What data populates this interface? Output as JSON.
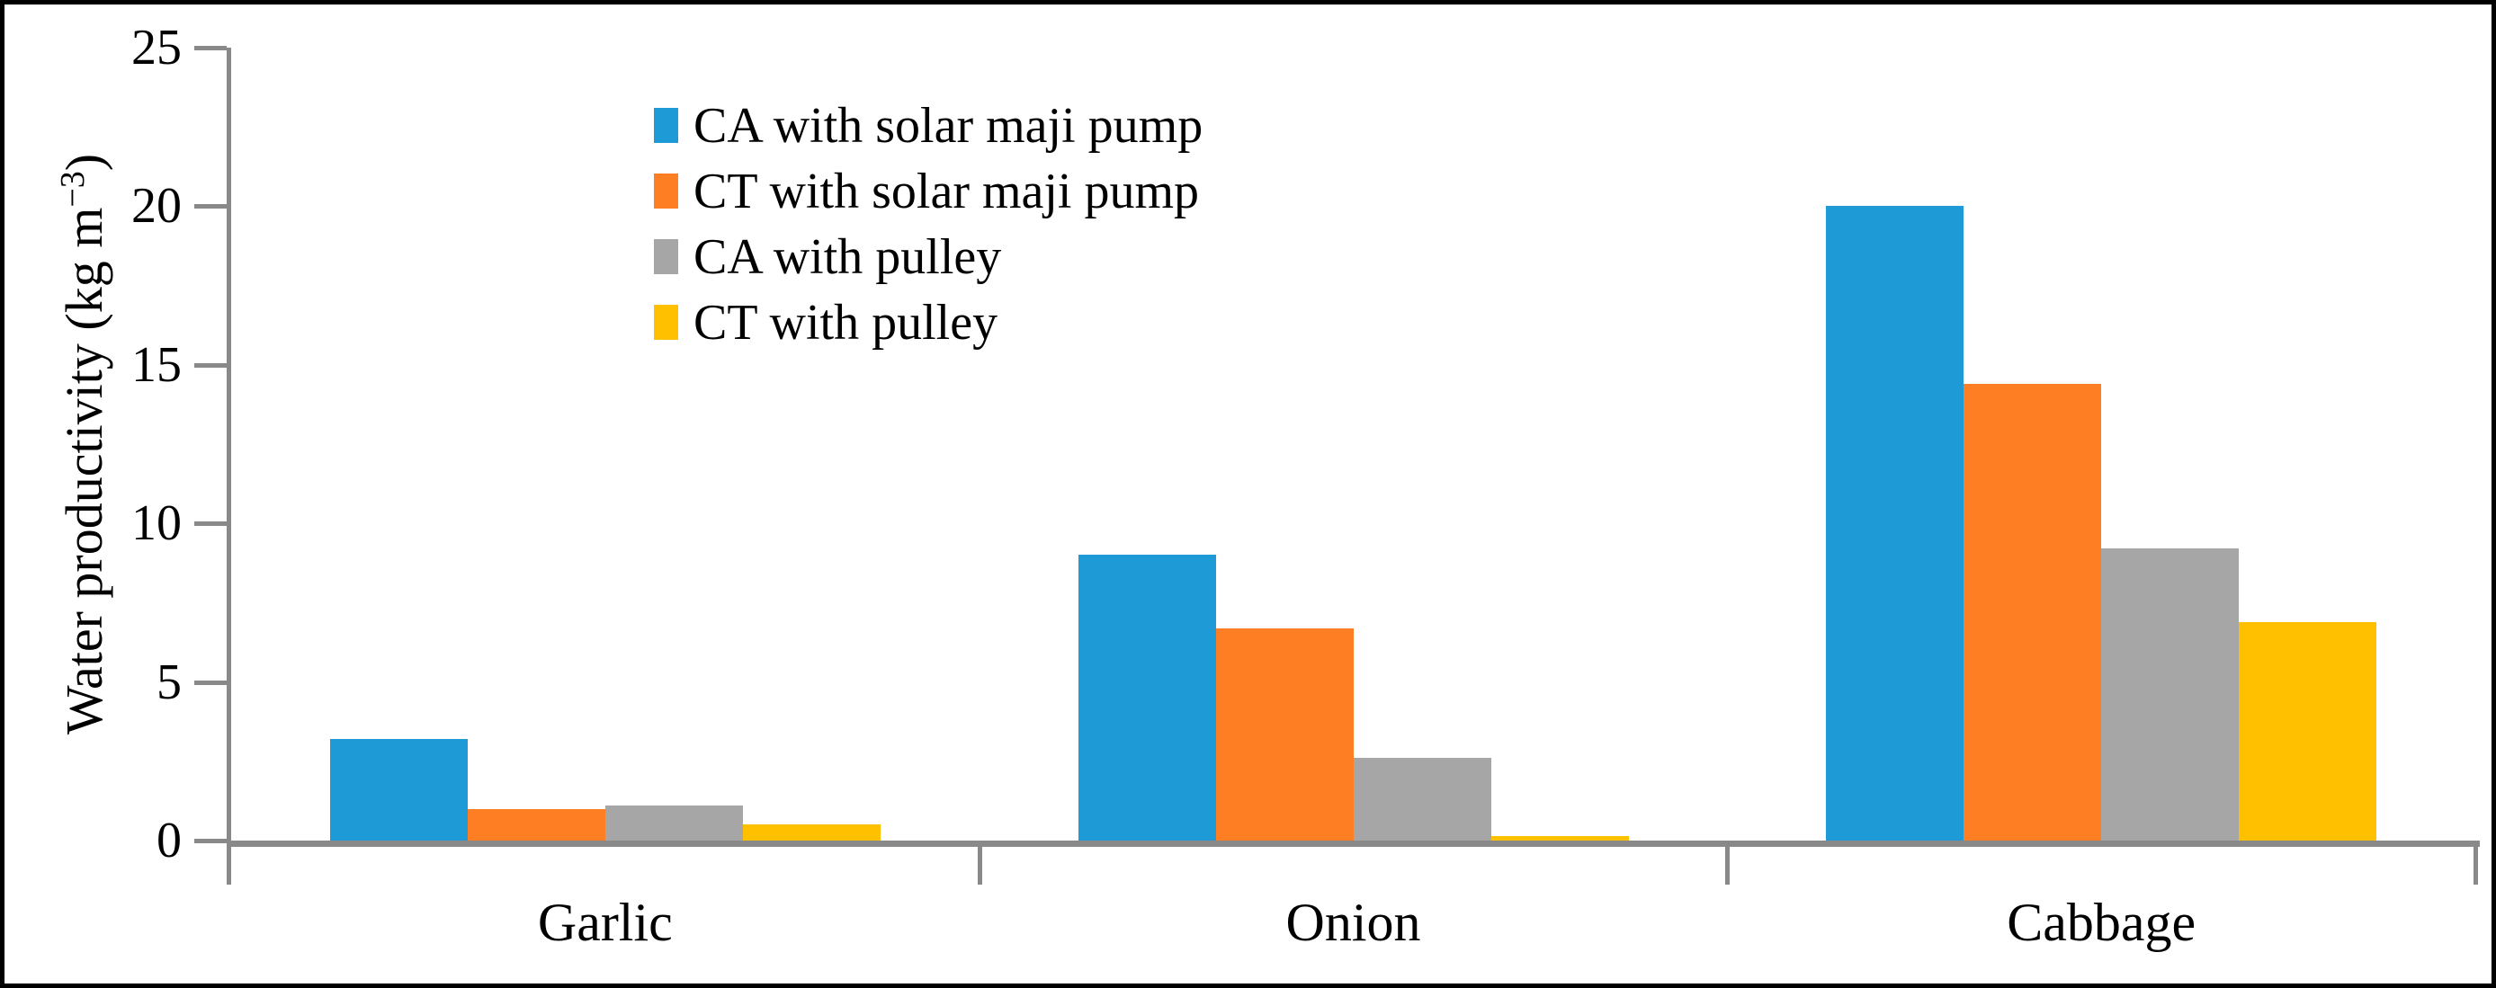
{
  "chart_data": {
    "type": "bar",
    "title": "",
    "xlabel": "",
    "ylabel": "Water productivity (kg m−3)",
    "ylabel_main": "Water productivity (kg m",
    "ylabel_sup": "−3",
    "ylabel_close": ")",
    "categories": [
      "Garlic",
      "Onion",
      "Cabbage"
    ],
    "series": [
      {
        "name": "CA with solar maji pump",
        "color": "#1E9BD7",
        "values": [
          3.2,
          9.0,
          20.0
        ]
      },
      {
        "name": "CT with solar maji pump",
        "color": "#FD7E23",
        "values": [
          1.0,
          6.7,
          14.4
        ]
      },
      {
        "name": "CA with pulley",
        "color": "#A6A6A6",
        "values": [
          1.1,
          2.6,
          9.2
        ]
      },
      {
        "name": "CT with pulley",
        "color": "#FFC000",
        "values": [
          0.5,
          0.15,
          6.9
        ]
      }
    ],
    "ylim": [
      0,
      25
    ],
    "yticks": [
      0,
      5,
      10,
      15,
      20,
      25
    ],
    "legend_position": "top-center",
    "grid": false,
    "axis_color": "#898989",
    "text_color": "#000000"
  }
}
